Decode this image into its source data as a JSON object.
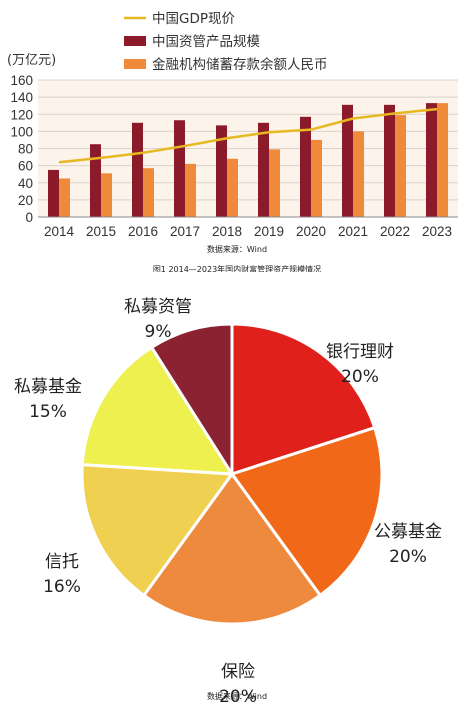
{
  "chart_data": [
    {
      "type": "bar",
      "caption": "图1 2014—2023年国内财富管理资产规模情况",
      "source": "数据来源：Wind",
      "ylabel": "(万亿元)",
      "ylim": [
        0,
        160
      ],
      "yticks": [
        0,
        20,
        40,
        60,
        80,
        100,
        120,
        140,
        160
      ],
      "grid": true,
      "legend_position": "top",
      "categories": [
        "2014",
        "2015",
        "2016",
        "2017",
        "2018",
        "2019",
        "2020",
        "2021",
        "2022",
        "2023"
      ],
      "series": [
        {
          "name": "中国GDP现价",
          "kind": "line",
          "color": "#e8b820",
          "values": [
            64,
            69,
            75,
            83,
            92,
            99,
            102,
            115,
            121,
            126
          ]
        },
        {
          "name": "中国资管产品规模",
          "kind": "bar",
          "color": "#8b1a2a",
          "values": [
            55,
            85,
            110,
            113,
            107,
            110,
            117,
            131,
            131,
            133
          ]
        },
        {
          "name": "金融机构储蓄存款余额人民币",
          "kind": "bar",
          "color": "#ee8a3a",
          "values": [
            45,
            51,
            57,
            62,
            68,
            79,
            90,
            100,
            119,
            133
          ]
        }
      ]
    },
    {
      "type": "pie",
      "source": "数据来源：Wind",
      "slices": [
        {
          "label": "银行理财",
          "pct_label": "20%",
          "value": 20,
          "color": "#e0201a"
        },
        {
          "label": "公募基金",
          "pct_label": "20%",
          "value": 20,
          "color": "#f06818"
        },
        {
          "label": "保险",
          "pct_label": "20%",
          "value": 20,
          "color": "#ee8a3e"
        },
        {
          "label": "信托",
          "pct_label": "16%",
          "value": 16,
          "color": "#f0d050"
        },
        {
          "label": "私募基金",
          "pct_label": "15%",
          "value": 15,
          "color": "#eef050"
        },
        {
          "label": "私募资管",
          "pct_label": "9%",
          "value": 9,
          "color": "#8b2232"
        }
      ]
    }
  ]
}
